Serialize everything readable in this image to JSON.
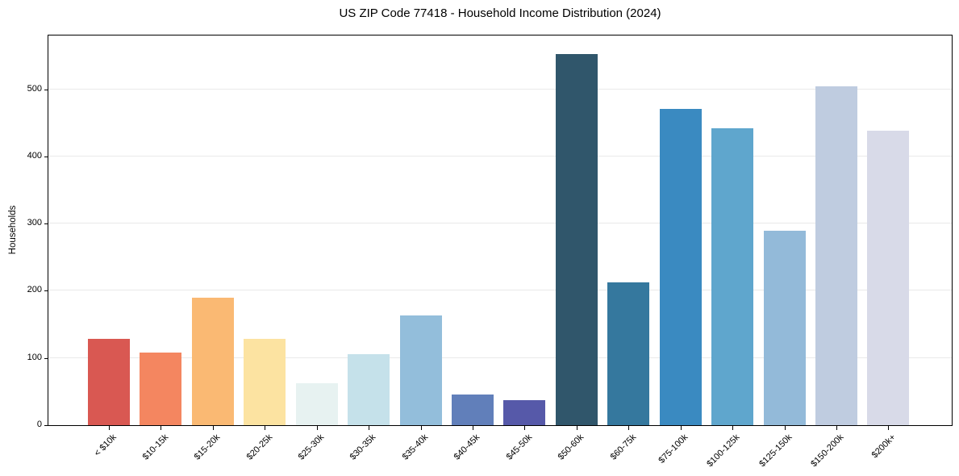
{
  "chart_data": {
    "type": "bar",
    "title": "US ZIP Code 77418 - Household Income Distribution (2024)",
    "xlabel": "",
    "ylabel": "Households",
    "categories": [
      "< $10k",
      "$10-15k",
      "$15-20k",
      "$20-25k",
      "$25-30k",
      "$30-35k",
      "$35-40k",
      "$40-45k",
      "$45-50k",
      "$50-60k",
      "$60-75k",
      "$75-100k",
      "$100-125k",
      "$125-150k",
      "$150-200k",
      "$200k+"
    ],
    "values": [
      128,
      108,
      190,
      129,
      62,
      106,
      163,
      46,
      37,
      552,
      212,
      471,
      442,
      289,
      504,
      438
    ],
    "bar_colors": [
      "#d95852",
      "#f48660",
      "#fab973",
      "#fce3a1",
      "#e7f2f1",
      "#c5e1ea",
      "#93bedb",
      "#617fba",
      "#5659a9",
      "#30566b",
      "#35789e",
      "#3a8ac1",
      "#5fa6cd",
      "#93bad9",
      "#bfcce0",
      "#d8dae8"
    ],
    "yticks": [
      0,
      100,
      200,
      300,
      400,
      500
    ],
    "ylim": [
      0,
      580
    ],
    "grid": "horizontal-only",
    "grid_color": "#e9e9e9",
    "axis_color": "#000000",
    "text_color": "#000000",
    "background_color": "#ffffff",
    "legend_position": "none"
  }
}
